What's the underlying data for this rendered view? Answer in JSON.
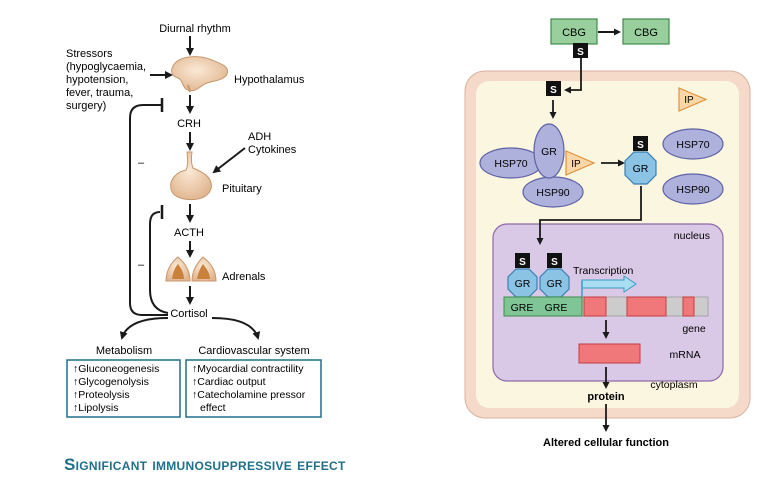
{
  "left_pathway": {
    "diurnal_rhythm": "Diurnal rhythm",
    "stressors": [
      "Stressors",
      "(hypoglycaemia,",
      "hypotension,",
      "fever, trauma,",
      "surgery)"
    ],
    "hypothalamus": "Hypothalamus",
    "crh": "CRH",
    "adh_cytokines": [
      "ADH",
      "Cytokines"
    ],
    "pituitary": "Pituitary",
    "acth": "ACTH",
    "adrenals": "Adrenals",
    "cortisol": "Cortisol",
    "feedback_sign": "–"
  },
  "metabolism": {
    "title": "Metabolism",
    "items": [
      "↑Gluconeogenesis",
      "↑Glycogenolysis",
      "↑Proteolysis",
      "↑Lipolysis"
    ]
  },
  "cardiovascular": {
    "title": "Cardiovascular system",
    "items": [
      "↑Myocardial contractility",
      "↑Cardiac output",
      "↑Catecholamine pressor",
      "effect"
    ]
  },
  "cell": {
    "cbg_left": "CBG",
    "cbg_right": "CBG",
    "steroid": "S",
    "ip": "IP",
    "gr": "GR",
    "hsp70": "HSP70",
    "hsp90": "HSP90",
    "nucleus": "nucleus",
    "transcription": "Transcription",
    "gre": "GRE",
    "gene": "gene",
    "mrna": "mRNA",
    "cytoplasm": "cytoplasm",
    "protein": "protein",
    "outcome": "Altered cellular function"
  },
  "heading": "Significant immunosuppressive effect",
  "colors": {
    "cell_outer": "#f5d9c9",
    "cytoplasm_fill": "#fbf6df",
    "nucleus_fill": "#d9c9e6",
    "ellipse_fill": "#aeb1dc",
    "gr_fill": "#8ac3e4",
    "cbg_fill": "#99cf9d",
    "gre_fill": "#7fc596",
    "exon_fill": "#f0787a",
    "ip_fill": "#fbd7a8",
    "heading": "#1f6f8b"
  }
}
